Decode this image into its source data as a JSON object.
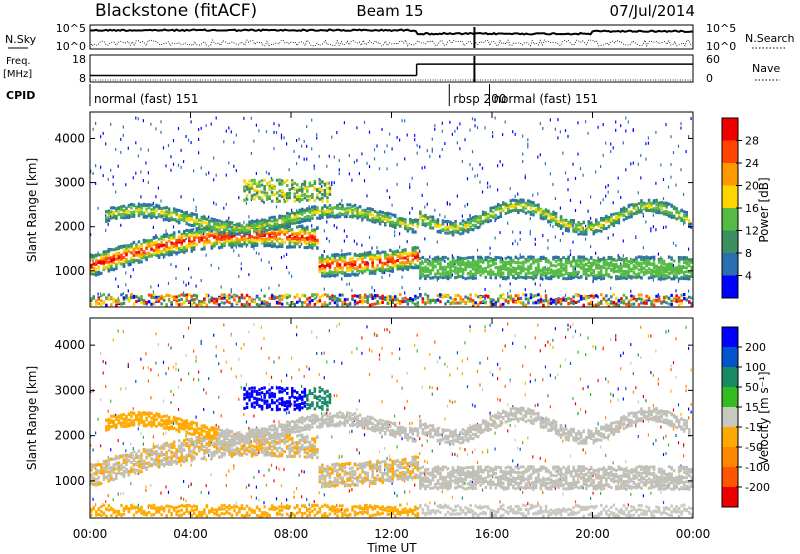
{
  "header": {
    "station": "Blackstone (fitACF)",
    "beam": "Beam 15",
    "date": "07/Jul/2014"
  },
  "colors": {
    "power_scale": [
      "#0000ff",
      "#2a6fb0",
      "#3c9060",
      "#55bb44",
      "#ffd500",
      "#ff9900",
      "#ff4400",
      "#ee0000"
    ],
    "velocity_scale": [
      "#ee0000",
      "#ff5500",
      "#ff8800",
      "#ffaa00",
      "#c8c8c0",
      "#33bb22",
      "#1a8a66",
      "#0055cc",
      "#0000ff"
    ],
    "ground_scatter": "#c0c0b8"
  },
  "chart_data": [
    {
      "type": "line",
      "name": "noise",
      "left_label": "N.Sky",
      "right_label": "N.Search",
      "left_ticks": [
        "10^5",
        "10^0"
      ],
      "right_ticks": [
        "10^5",
        "10^0"
      ]
    },
    {
      "type": "line",
      "name": "frequency-nave",
      "left_label_1": "Freq.",
      "left_label_2": "[MHz]",
      "left_ticks": [
        "18",
        "8"
      ],
      "right_label": "Nave",
      "right_ticks": [
        "60",
        "0"
      ],
      "freq_segments": [
        {
          "x": [
            0,
            13.0
          ],
          "y": 10.4
        },
        {
          "x": [
            13.0,
            24.0
          ],
          "y": 14.6
        }
      ],
      "freq_drop_at": 15.3
    },
    {
      "type": "table",
      "name": "cpid",
      "label": "CPID",
      "segments": [
        {
          "start": 0,
          "text": "normal (fast) 151"
        },
        {
          "start": 14.3,
          "text": "rbsp 200"
        },
        {
          "start": 15.9,
          "text": "normal (fast) 151"
        }
      ]
    },
    {
      "type": "heatmap",
      "name": "power",
      "ylabel": "Slant Range [km]",
      "colorbar_label": "Power [dB]",
      "colorbar_ticks": [
        "28",
        "24",
        "20",
        "16",
        "12",
        "8",
        "4"
      ],
      "y_ticks": [
        "4000",
        "3000",
        "2000",
        "1000"
      ],
      "ylim": [
        180,
        4600
      ],
      "zlim": [
        0,
        32
      ]
    },
    {
      "type": "heatmap",
      "name": "velocity",
      "ylabel": "Slant Range [km]",
      "colorbar_label": "Velocity [m s⁻¹]",
      "colorbar_ticks": [
        "200",
        "100",
        "50",
        "15",
        "-15",
        "-50",
        "-100",
        "-200"
      ],
      "y_ticks": [
        "4000",
        "3000",
        "2000",
        "1000"
      ],
      "ylim": [
        180,
        4600
      ],
      "zlim": [
        -250,
        250
      ]
    }
  ],
  "time_axis": {
    "xlabel": "Time UT",
    "ticks": [
      "00:00",
      "04:00",
      "08:00",
      "12:00",
      "16:00",
      "20:00",
      "00:00"
    ],
    "xlim_hours": [
      0,
      24
    ]
  }
}
